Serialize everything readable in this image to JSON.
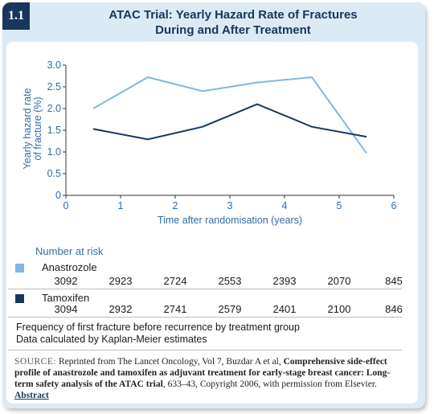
{
  "badge": "1.1",
  "title_line1": "ATAC Trial: Yearly Hazard Rate of Fractures",
  "title_line2": "During and After Treatment",
  "colors": {
    "anastrozole": "#7fb8e2",
    "tamoxifen": "#17375e",
    "axis_text": "#2f6ca8",
    "card_bg": "#dceaf5"
  },
  "chart_data": {
    "type": "line",
    "xlabel": "Time after randomisation (years)",
    "ylabel_line1": "Yearly hazard rate",
    "ylabel_line2": "of fracture (%)",
    "xlim": [
      0,
      6
    ],
    "ylim": [
      0,
      3.0
    ],
    "xticks": [
      "0",
      "1",
      "2",
      "3",
      "4",
      "5",
      "6"
    ],
    "yticks": [
      "0",
      "0.5",
      "1.0",
      "1.5",
      "2.0",
      "2.5",
      "3.0"
    ],
    "series": [
      {
        "name": "Anastrozole",
        "x": [
          0.5,
          1.5,
          2.5,
          3.5,
          4.5,
          5.5
        ],
        "y": [
          2.0,
          2.72,
          2.4,
          2.6,
          2.72,
          0.97
        ]
      },
      {
        "name": "Tamoxifen",
        "x": [
          0.5,
          1.5,
          2.5,
          3.5,
          4.5,
          5.5
        ],
        "y": [
          1.53,
          1.29,
          1.58,
          2.1,
          1.58,
          1.35
        ]
      }
    ],
    "grid": false
  },
  "risk_table": {
    "header": "Number at risk",
    "groups": [
      {
        "name": "Anastrozole",
        "values": [
          "3092",
          "2923",
          "2724",
          "2553",
          "2393",
          "2070",
          "845"
        ]
      },
      {
        "name": "Tamoxifen",
        "values": [
          "3094",
          "2932",
          "2741",
          "2579",
          "2401",
          "2100",
          "846"
        ]
      }
    ]
  },
  "footnote1": "Frequency of first fracture before recurrence by treatment group",
  "footnote2": "Data calculated by Kaplan-Meier estimates",
  "source": {
    "label": "SOURCE:",
    "text1": " Reprinted from The Lancet Oncology, Vol 7, Buzdar A et al, ",
    "bold": "Comprehensive side-effect profile of anastrozole and tamoxifen as adjuvant treatment for early-stage breast cancer: Long-term safety analysis of the ATAC trial",
    "text2": ", 633–43, Copyright 2006, with permission from Elsevier. ",
    "link": "Abstract"
  }
}
